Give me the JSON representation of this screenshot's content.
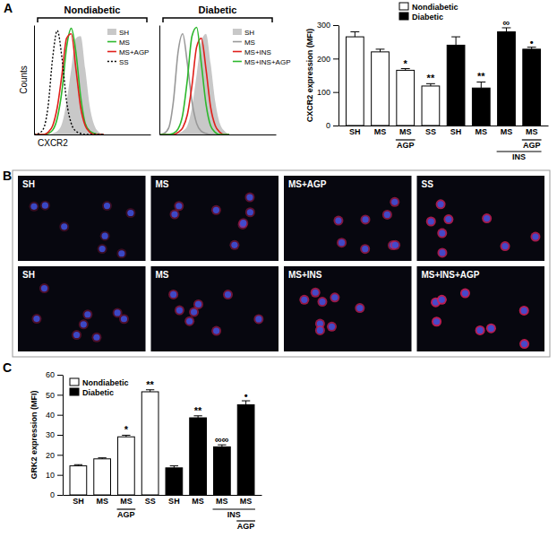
{
  "panel_labels": [
    "A",
    "B",
    "C"
  ],
  "chart_data": [
    {
      "type": "line",
      "title": "Nondiabetic",
      "x_label": "CXCR2",
      "y_label": "Counts",
      "x": [
        0,
        4,
        8,
        12,
        16,
        20,
        24,
        28,
        32,
        36,
        40,
        44,
        48,
        52,
        56,
        60
      ],
      "xlim": [
        0,
        100
      ],
      "ylim": [
        0,
        100
      ],
      "tick_labels": false,
      "legend": "upper right",
      "series": [
        {
          "name": "SH",
          "type": "area",
          "color": "#c8c8c8",
          "values": [
            0,
            0,
            0,
            0,
            1,
            3,
            10,
            30,
            60,
            88,
            90,
            60,
            25,
            8,
            2,
            0
          ]
        },
        {
          "name": "MS",
          "color": "#2db82d",
          "values": [
            0,
            0,
            0,
            1,
            4,
            15,
            40,
            80,
            97,
            75,
            35,
            10,
            3,
            1,
            0,
            0
          ]
        },
        {
          "name": "MS+AGP",
          "color": "#e0201b",
          "values": [
            0,
            0,
            0,
            2,
            8,
            25,
            55,
            88,
            92,
            60,
            25,
            8,
            2,
            0,
            0,
            0
          ]
        },
        {
          "name": "SS",
          "color": "#000000",
          "line_style": "dotted",
          "values": [
            0,
            1,
            5,
            25,
            70,
            95,
            70,
            30,
            10,
            3,
            1,
            0,
            0,
            0,
            0,
            0
          ]
        }
      ]
    },
    {
      "type": "line",
      "title": "Diabetic",
      "x": [
        0,
        4,
        8,
        12,
        16,
        20,
        24,
        28,
        32,
        36,
        40,
        44,
        48,
        52,
        56,
        60
      ],
      "xlim": [
        0,
        100
      ],
      "ylim": [
        0,
        100
      ],
      "tick_labels": false,
      "legend": "upper right",
      "series": [
        {
          "name": "SH",
          "type": "area",
          "color": "#c8c8c8",
          "values": [
            0,
            0,
            0,
            0,
            1,
            3,
            8,
            25,
            55,
            85,
            92,
            65,
            30,
            10,
            3,
            0
          ]
        },
        {
          "name": "MS",
          "color": "#999999",
          "values": [
            0,
            1,
            6,
            30,
            75,
            92,
            65,
            30,
            10,
            3,
            1,
            0,
            0,
            0,
            0,
            0
          ]
        },
        {
          "name": "MS+INS",
          "color": "#e0201b",
          "values": [
            0,
            0,
            0,
            0,
            2,
            6,
            18,
            45,
            80,
            88,
            60,
            25,
            8,
            2,
            0,
            0
          ]
        },
        {
          "name": "MS+INS+AGP",
          "color": "#2db82d",
          "values": [
            0,
            0,
            0,
            1,
            5,
            18,
            50,
            90,
            98,
            65,
            28,
            8,
            2,
            0,
            0,
            0
          ]
        }
      ]
    },
    {
      "type": "bar",
      "y_label": "CXCR2 expression (MFI)",
      "categories": [
        "SH",
        "MS",
        "MS",
        "SS",
        "SH",
        "MS",
        "MS",
        "MS"
      ],
      "groups": [
        {
          "label": "AGP",
          "categories": [
            2,
            2
          ]
        },
        {
          "label": "AGP",
          "categories": [
            7,
            7
          ]
        },
        {
          "label": "INS",
          "categories": [
            6,
            7
          ]
        }
      ],
      "ylim": [
        0,
        300
      ],
      "yticks": [
        0,
        100,
        200,
        300
      ],
      "legend": "upper right",
      "series": [
        {
          "name": "Nondiabetic",
          "color": "#ffffff",
          "values": [
            265,
            220,
            165,
            118,
            null,
            null,
            null,
            null
          ],
          "errors": [
            15,
            8,
            5,
            7,
            null,
            null,
            null,
            null
          ],
          "significance": [
            null,
            null,
            "*",
            "**",
            null,
            null,
            null,
            null
          ]
        },
        {
          "name": "Diabetic",
          "color": "#000000",
          "values": [
            null,
            null,
            null,
            null,
            240,
            112,
            280,
            228
          ],
          "errors": [
            null,
            null,
            null,
            null,
            25,
            18,
            12,
            6
          ],
          "significance": [
            null,
            null,
            null,
            null,
            null,
            "**",
            "∞",
            "•"
          ]
        }
      ]
    },
    {
      "type": "bar",
      "y_label": "GRK2 expression (MFI)",
      "categories": [
        "SH",
        "MS",
        "MS",
        "SS",
        "SH",
        "MS",
        "MS",
        "MS"
      ],
      "groups": [
        {
          "label": "INS",
          "categories": [
            6,
            7
          ]
        },
        {
          "label": "AGP",
          "categories": [
            7,
            7
          ]
        },
        {
          "label": "AGP",
          "categories": [
            2,
            2
          ]
        }
      ],
      "ylim": [
        0,
        60
      ],
      "yticks": [
        0,
        10,
        20,
        30,
        40,
        50,
        60
      ],
      "legend": "upper left",
      "series": [
        {
          "name": "Nondiabetic",
          "color": "#ffffff",
          "values": [
            14.5,
            18,
            29,
            51.5,
            null,
            null,
            null,
            null
          ],
          "errors": [
            0.6,
            0.5,
            0.8,
            1.0,
            null,
            null,
            null,
            null
          ],
          "significance": [
            null,
            null,
            "*",
            "**",
            null,
            null,
            null,
            null
          ]
        },
        {
          "name": "Diabetic",
          "color": "#000000",
          "values": [
            null,
            null,
            null,
            null,
            13.5,
            38.5,
            24,
            45
          ],
          "errors": [
            null,
            null,
            null,
            null,
            1.0,
            1.0,
            1.0,
            2.0
          ],
          "significance": [
            null,
            null,
            null,
            null,
            null,
            "**",
            "∞∞",
            "•"
          ]
        }
      ]
    }
  ],
  "images": {
    "rows": [
      [
        "SH",
        "MS",
        "MS+AGP",
        "SS"
      ],
      [
        "SH",
        "MS",
        "MS+INS",
        "MS+INS+AGP"
      ]
    ]
  }
}
